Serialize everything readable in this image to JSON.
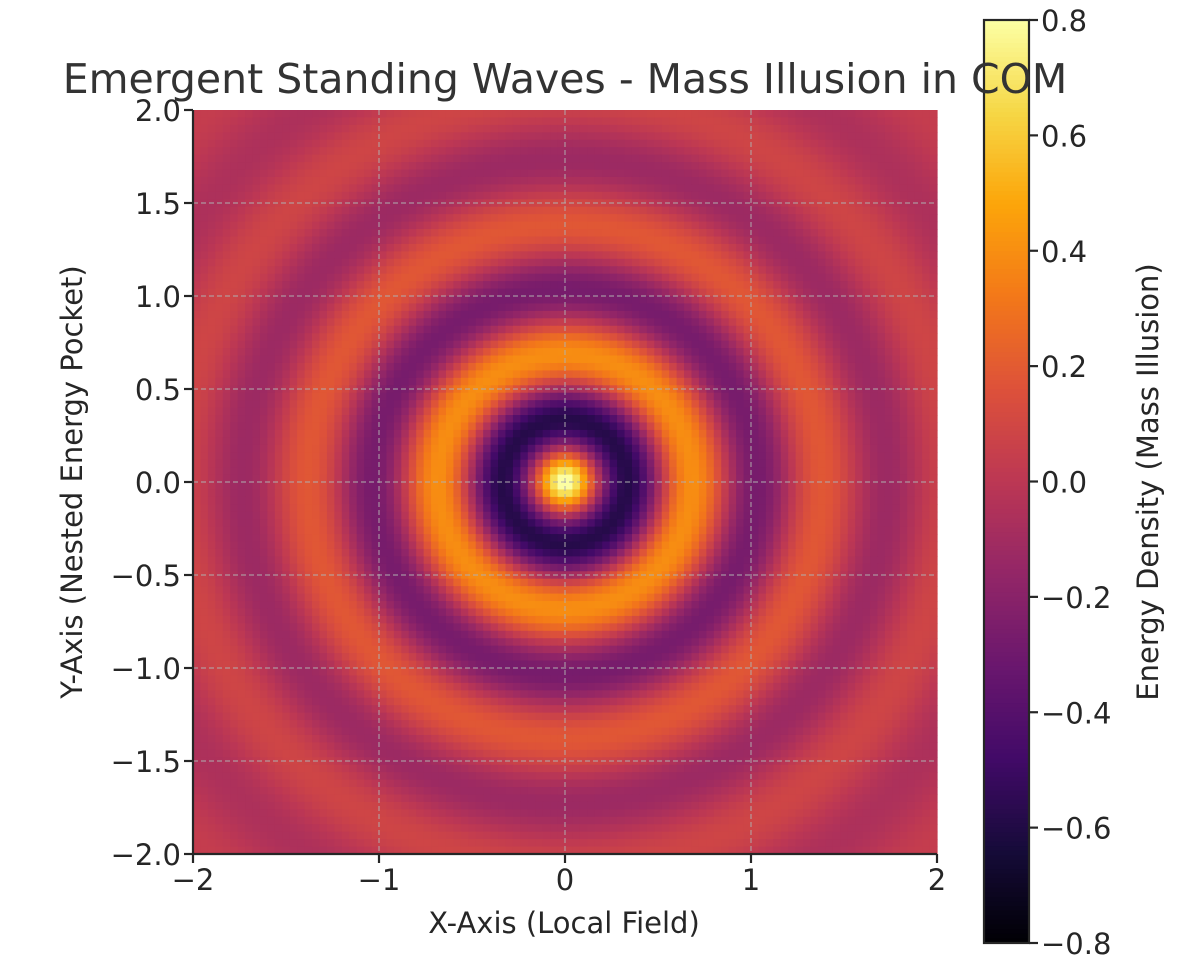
{
  "chart_data": {
    "type": "heatmap",
    "title": "Emergent Standing Waves - Mass Illusion in COM",
    "xlabel": "X-Axis (Local Field)",
    "ylabel": "Y-Axis (Nested Energy Pocket)",
    "xlim": [
      -2,
      2
    ],
    "ylim": [
      -2,
      2
    ],
    "x_ticks": [
      -2,
      -1,
      0,
      1,
      2
    ],
    "x_tick_labels": [
      "−2",
      "−1",
      "0",
      "1",
      "2"
    ],
    "y_ticks": [
      -2.0,
      -1.5,
      -1.0,
      -0.5,
      0.0,
      0.5,
      1.0,
      1.5,
      2.0
    ],
    "y_tick_labels": [
      "−2.0",
      "−1.5",
      "−1.0",
      "−0.5",
      "0.0",
      "0.5",
      "1.0",
      "1.5",
      "2.0"
    ],
    "grid": true,
    "colormap": "inferno",
    "grid_resolution": 100,
    "field": "radial standing wave: value = 0.8 * cos(9*r) * exp(-1.1*r) ... sampled 100x100 over [-2,2]",
    "colorbar": {
      "label": "Energy Density (Mass Illusion)",
      "vmin": -0.8,
      "vmax": 0.8,
      "ticks": [
        -0.8,
        -0.6,
        -0.4,
        -0.2,
        0.0,
        0.2,
        0.4,
        0.6,
        0.8
      ],
      "tick_labels": [
        "−0.8",
        "−0.6",
        "−0.4",
        "−0.2",
        "0.0",
        "0.2",
        "0.4",
        "0.6",
        "0.8"
      ]
    }
  }
}
